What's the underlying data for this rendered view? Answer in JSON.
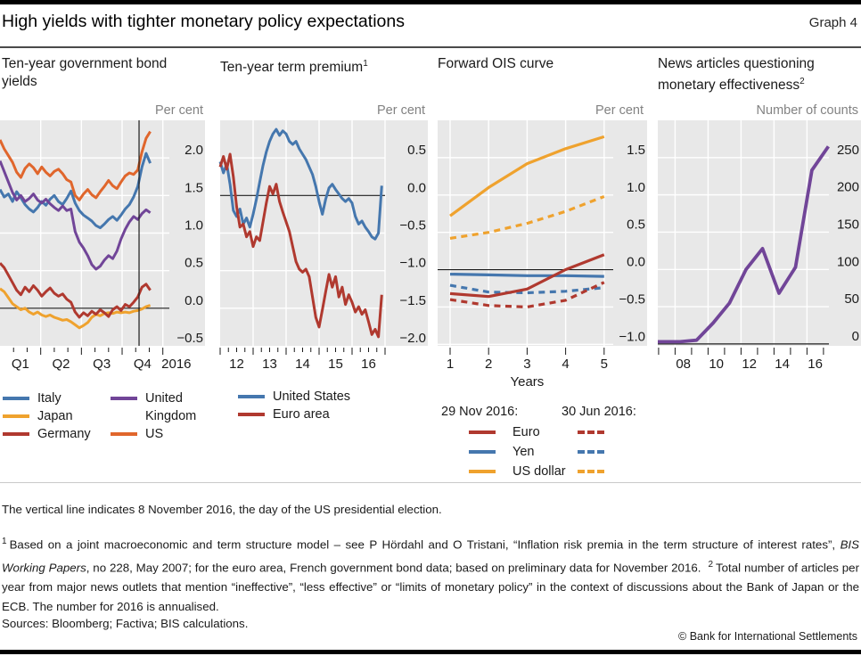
{
  "header": {
    "title": "High yields with tighter monetary policy expectations",
    "graph_label": "Graph 4"
  },
  "colors": {
    "panel_bg": "#e8e8e8",
    "gridline": "#ffffff",
    "axis": "#1a1a1a",
    "blue": "#4577ae",
    "amber": "#efa22e",
    "red": "#b0392f",
    "purple": "#714598",
    "orange": "#e0662c"
  },
  "chart_data": [
    {
      "type": "line",
      "title": "Ten-year government bond yields",
      "unit_label": "Per cent",
      "x_unit": "fraction of year 2016",
      "x_range": [
        0,
        0.923
      ],
      "x_axis": {
        "positions": [
          0.125,
          0.375,
          0.625,
          0.875,
          1.083
        ],
        "labels": [
          "Q1",
          "Q2",
          "Q3",
          "Q4",
          "2016"
        ]
      },
      "y_axis": {
        "values": [
          2.0,
          1.5,
          1.0,
          0.5,
          0.0,
          -0.5
        ],
        "labels": [
          "2.0",
          "1.5",
          "1.0",
          "0.5",
          "0.0",
          "−0.5"
        ]
      },
      "ylim": [
        -0.5,
        2.5
      ],
      "vertical_line": {
        "x": 0.854,
        "meaning": "8 November 2016, the day of the US presidential election"
      },
      "series": [
        {
          "name": "Italy",
          "color": "#4577ae",
          "values": [
            1.58,
            1.48,
            1.52,
            1.42,
            1.55,
            1.47,
            1.38,
            1.32,
            1.28,
            1.34,
            1.42,
            1.37,
            1.45,
            1.5,
            1.42,
            1.38,
            1.46,
            1.56,
            1.4,
            1.3,
            1.24,
            1.2,
            1.16,
            1.1,
            1.07,
            1.12,
            1.18,
            1.22,
            1.17,
            1.24,
            1.32,
            1.38,
            1.48,
            1.62,
            1.88,
            2.06,
            1.93
          ]
        },
        {
          "name": "Japan",
          "color": "#efa22e",
          "values": [
            0.26,
            0.22,
            0.14,
            0.06,
            0.02,
            -0.02,
            0.0,
            -0.05,
            -0.08,
            -0.05,
            -0.09,
            -0.11,
            -0.09,
            -0.12,
            -0.14,
            -0.16,
            -0.15,
            -0.18,
            -0.22,
            -0.26,
            -0.23,
            -0.19,
            -0.12,
            -0.08,
            -0.1,
            -0.07,
            -0.06,
            -0.07,
            -0.05,
            -0.06,
            -0.05,
            -0.06,
            -0.04,
            -0.03,
            -0.01,
            0.02,
            0.04
          ]
        },
        {
          "name": "Germany",
          "color": "#b0392f",
          "values": [
            0.6,
            0.54,
            0.44,
            0.34,
            0.24,
            0.18,
            0.28,
            0.22,
            0.3,
            0.24,
            0.16,
            0.22,
            0.27,
            0.2,
            0.16,
            0.19,
            0.12,
            0.08,
            -0.05,
            -0.12,
            -0.06,
            -0.1,
            -0.04,
            -0.08,
            -0.02,
            -0.06,
            -0.11,
            -0.02,
            0.02,
            -0.03,
            0.05,
            0.02,
            0.08,
            0.15,
            0.28,
            0.32,
            0.24
          ]
        },
        {
          "name": "United Kingdom",
          "color": "#714598",
          "values": [
            1.96,
            1.82,
            1.68,
            1.54,
            1.44,
            1.5,
            1.42,
            1.46,
            1.52,
            1.44,
            1.4,
            1.45,
            1.39,
            1.34,
            1.3,
            1.36,
            1.3,
            1.32,
            1.02,
            0.88,
            0.8,
            0.7,
            0.58,
            0.52,
            0.56,
            0.64,
            0.7,
            0.66,
            0.76,
            0.92,
            1.05,
            1.15,
            1.22,
            1.18,
            1.26,
            1.31,
            1.27
          ]
        },
        {
          "name": "US",
          "color": "#e0662c",
          "values": [
            2.24,
            2.12,
            2.03,
            1.94,
            1.81,
            1.74,
            1.86,
            1.92,
            1.87,
            1.79,
            1.88,
            1.81,
            1.76,
            1.82,
            1.85,
            1.79,
            1.71,
            1.68,
            1.5,
            1.44,
            1.52,
            1.58,
            1.51,
            1.47,
            1.55,
            1.62,
            1.7,
            1.63,
            1.59,
            1.68,
            1.76,
            1.8,
            1.78,
            1.84,
            2.08,
            2.26,
            2.35
          ]
        }
      ]
    },
    {
      "type": "line",
      "title": "Ten-year term premium",
      "title_sup": "1",
      "unit_label": "Per cent",
      "x_unit": "year",
      "x_range": [
        2012.0,
        2016.9
      ],
      "x_axis": {
        "positions": [
          2012.5,
          2013.5,
          2014.5,
          2015.5,
          2016.5
        ],
        "labels": [
          "12",
          "13",
          "14",
          "15",
          "16"
        ]
      },
      "y_axis": {
        "values": [
          0.5,
          0.0,
          -0.5,
          -1.0,
          -1.5,
          -2.0
        ],
        "labels": [
          "0.5",
          "0.0",
          "−0.5",
          "−1.0",
          "−1.5",
          "−2.0"
        ]
      },
      "ylim": [
        -2.0,
        1.0
      ],
      "series": [
        {
          "name": "United States",
          "color": "#4577ae",
          "values": [
            0.45,
            0.3,
            0.42,
            0.15,
            -0.2,
            -0.28,
            -0.18,
            -0.38,
            -0.3,
            -0.42,
            -0.25,
            -0.05,
            0.18,
            0.4,
            0.58,
            0.72,
            0.82,
            0.88,
            0.8,
            0.86,
            0.82,
            0.72,
            0.68,
            0.72,
            0.62,
            0.55,
            0.48,
            0.38,
            0.28,
            0.12,
            -0.08,
            -0.25,
            -0.05,
            0.1,
            0.15,
            0.08,
            0.02,
            -0.04,
            -0.08,
            -0.04,
            -0.1,
            -0.28,
            -0.38,
            -0.34,
            -0.42,
            -0.48,
            -0.55,
            -0.58,
            -0.5,
            0.13
          ]
        },
        {
          "name": "Euro area",
          "color": "#b0392f",
          "values": [
            0.38,
            0.52,
            0.35,
            0.55,
            0.25,
            -0.15,
            -0.42,
            -0.38,
            -0.55,
            -0.48,
            -0.68,
            -0.55,
            -0.6,
            -0.35,
            -0.1,
            0.12,
            0.02,
            0.15,
            -0.08,
            -0.22,
            -0.35,
            -0.48,
            -0.68,
            -0.88,
            -0.98,
            -1.02,
            -0.98,
            -1.08,
            -1.35,
            -1.62,
            -1.75,
            -1.52,
            -1.28,
            -1.05,
            -1.22,
            -1.08,
            -1.35,
            -1.22,
            -1.45,
            -1.32,
            -1.42,
            -1.55,
            -1.48,
            -1.58,
            -1.52,
            -1.68,
            -1.85,
            -1.78,
            -1.88,
            -1.32
          ]
        }
      ]
    },
    {
      "type": "line",
      "title": "Forward OIS curve",
      "unit_label": "Per cent",
      "xlabel": "Years",
      "x_axis": {
        "positions": [
          1,
          2,
          3,
          4,
          5
        ],
        "labels": [
          "1",
          "2",
          "3",
          "4",
          "5"
        ]
      },
      "y_axis": {
        "values": [
          1.5,
          1.0,
          0.5,
          0.0,
          -0.5,
          -1.0
        ],
        "labels": [
          "1.5",
          "1.0",
          "0.5",
          "0.0",
          "−0.5",
          "−1.0"
        ]
      },
      "ylim": [
        -1.0,
        2.0
      ],
      "legend": {
        "left_header": "29 Nov 2016:",
        "right_header": "30 Jun 2016:",
        "rows": [
          {
            "label": "Euro",
            "color": "#b0392f"
          },
          {
            "label": "Yen",
            "color": "#4577ae"
          },
          {
            "label": "US dollar",
            "color": "#efa22e"
          }
        ]
      },
      "series": [
        {
          "name": "US dollar",
          "group": "29 Nov 2016",
          "color": "#efa22e",
          "dashed": false,
          "x": [
            1,
            2,
            3,
            4,
            5
          ],
          "values": [
            0.72,
            1.1,
            1.42,
            1.62,
            1.78
          ]
        },
        {
          "name": "US dollar",
          "group": "30 Jun 2016",
          "color": "#efa22e",
          "dashed": true,
          "x": [
            1,
            2,
            3,
            4,
            5
          ],
          "values": [
            0.42,
            0.5,
            0.62,
            0.78,
            0.98
          ]
        },
        {
          "name": "Yen",
          "group": "30 Jun 2016",
          "color": "#4577ae",
          "dashed": true,
          "x": [
            1,
            2,
            3,
            4,
            5
          ],
          "values": [
            -0.21,
            -0.3,
            -0.31,
            -0.29,
            -0.24
          ]
        },
        {
          "name": "Yen",
          "group": "29 Nov 2016",
          "color": "#4577ae",
          "dashed": false,
          "x": [
            1,
            2,
            3,
            4,
            5
          ],
          "values": [
            -0.06,
            -0.07,
            -0.08,
            -0.08,
            -0.09
          ]
        },
        {
          "name": "Euro",
          "group": "30 Jun 2016",
          "color": "#b0392f",
          "dashed": true,
          "x": [
            1,
            2,
            3,
            4,
            5
          ],
          "values": [
            -0.4,
            -0.48,
            -0.5,
            -0.41,
            -0.17
          ]
        },
        {
          "name": "Euro",
          "group": "29 Nov 2016",
          "color": "#b0392f",
          "dashed": false,
          "x": [
            1,
            2,
            3,
            4,
            5
          ],
          "values": [
            -0.32,
            -0.36,
            -0.26,
            0.0,
            0.2
          ]
        }
      ]
    },
    {
      "type": "line",
      "title": "News articles questioning monetary effectiveness",
      "title_sup": "2",
      "unit_label": "Number of counts",
      "x_unit": "year",
      "x_axis": {
        "positions": [
          2008.5,
          2010.5,
          2012.5,
          2014.5,
          2016.5
        ],
        "labels": [
          "08",
          "10",
          "12",
          "14",
          "16"
        ]
      },
      "y_axis": {
        "values": [
          250,
          200,
          150,
          100,
          50,
          0
        ],
        "labels": [
          "250",
          "200",
          "150",
          "100",
          "50",
          "0"
        ]
      },
      "ylim": [
        0,
        300
      ],
      "note": "The number for 2016 is annualised",
      "series": [
        {
          "name": "Articles per year",
          "color": "#714598",
          "x": [
            2007,
            2008,
            2009,
            2010,
            2011,
            2012,
            2013,
            2014,
            2015,
            2016
          ],
          "values": [
            3,
            5,
            28,
            55,
            100,
            128,
            68,
            103,
            233,
            265
          ]
        }
      ]
    }
  ],
  "footnotes": {
    "vertical_line_note": "The vertical line indicates 8 November 2016, the day of the US presidential election.",
    "fn1_marker": "1",
    "fn1_part1": "Based on a joint macroeconomic and term structure model – see P Hördahl and O Tristani, “Inflation risk premia in the term structure of interest rates”, ",
    "fn1_italic": "BIS Working Papers",
    "fn1_part2": ", no 228, May 2007; for the euro area, French government bond data; based on preliminary data for November 2016.",
    "fn2_marker": "2",
    "fn2_text": "Total number of articles per year from major news outlets that mention “ineffective”, “less effective” or “limits of monetary policy” in the context of discussions about the Bank of Japan or the ECB. The number for 2016 is annualised.",
    "sources": "Sources: Bloomberg; Factiva; BIS calculations.",
    "copyright": "© Bank for International Settlements"
  }
}
